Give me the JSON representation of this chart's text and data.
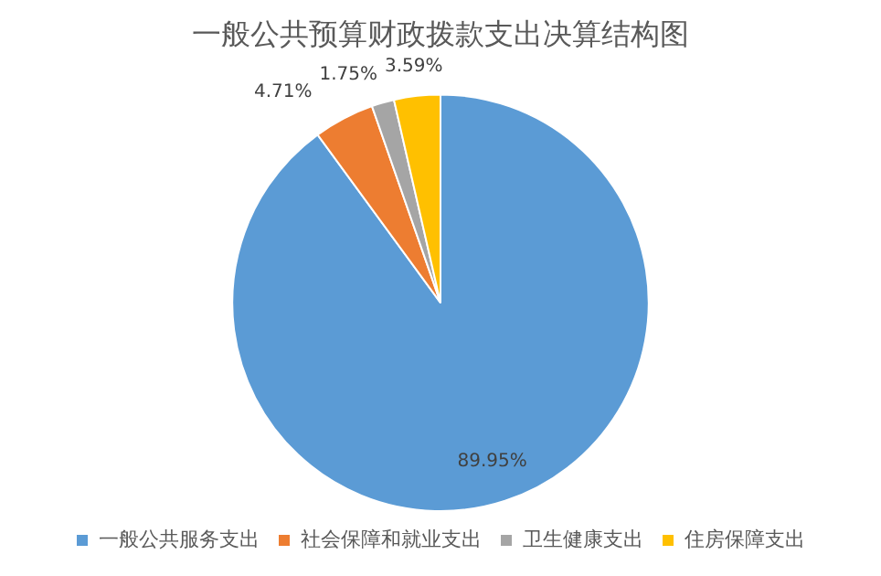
{
  "chart_data": {
    "type": "pie",
    "title": "一般公共预算财政拨款支出决算结构图",
    "categories": [
      "一般公共服务支出",
      "社会保障和就业支出",
      "卫生健康支出",
      "住房保障支出"
    ],
    "values": [
      89.95,
      4.71,
      1.75,
      3.59
    ],
    "colors": [
      "#5b9bd5",
      "#ed7d31",
      "#a5a5a5",
      "#ffc000"
    ],
    "value_labels": [
      "89.95%",
      "4.71%",
      "1.75%",
      "3.59%"
    ],
    "legend": "bottom"
  }
}
